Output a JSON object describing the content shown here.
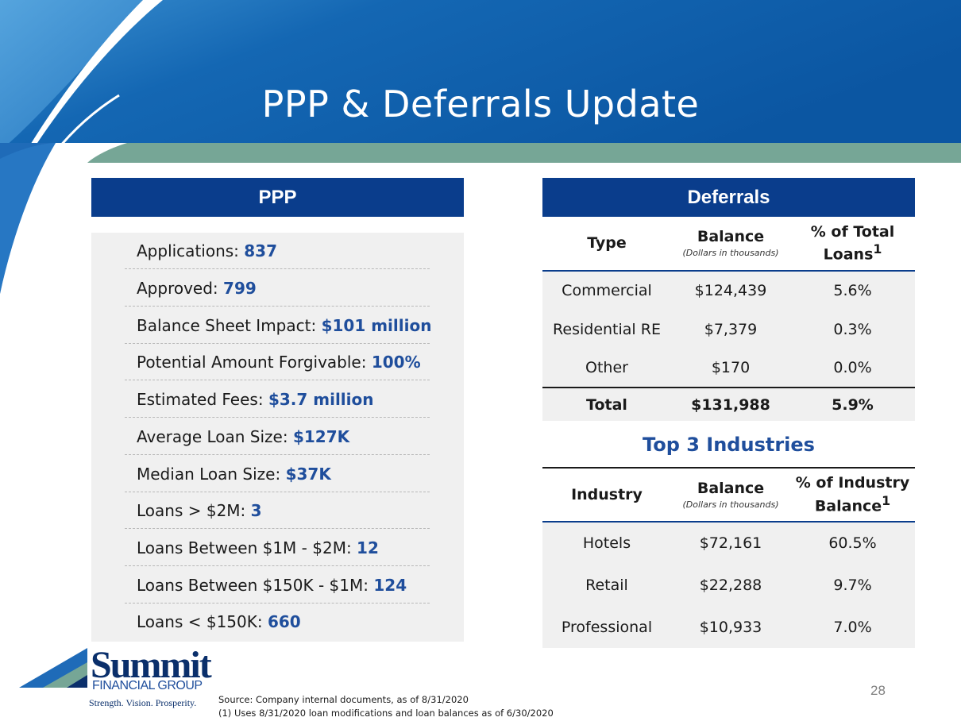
{
  "title": "PPP & Deferrals Update",
  "colors": {
    "brand_navy": "#0a3d8c",
    "accent_blue": "#1f4e9c",
    "teal_band": "#76a696",
    "panel_gray": "#f0f0f0"
  },
  "ppp": {
    "heading": "PPP",
    "rows": [
      {
        "label": "Applications:",
        "value": "837"
      },
      {
        "label": "Approved:",
        "value": "799"
      },
      {
        "label": "Balance Sheet Impact:",
        "value": "$101 million"
      },
      {
        "label": "Potential Amount Forgivable:",
        "value": "100%"
      },
      {
        "label": "Estimated Fees:",
        "value": "$3.7 million"
      },
      {
        "label": "Average Loan Size:",
        "value": "$127K"
      },
      {
        "label": "Median Loan Size:",
        "value": "$37K"
      },
      {
        "label": "Loans > $2M:",
        "value": "3"
      },
      {
        "label": "Loans Between $1M - $2M:",
        "value": "12"
      },
      {
        "label": "Loans Between $150K - $1M:",
        "value": "124"
      },
      {
        "label": "Loans < $150K:",
        "value": "660"
      }
    ]
  },
  "deferrals": {
    "heading": "Deferrals",
    "headers": {
      "type": "Type",
      "balance": "Balance",
      "balance_sub": "(Dollars in thousands)",
      "pct": "% of Total Loans",
      "pct_sup": "1"
    },
    "rows": [
      {
        "type": "Commercial",
        "balance": "$124,439",
        "pct": "5.6%"
      },
      {
        "type": "Residential RE",
        "balance": "$7,379",
        "pct": "0.3%"
      },
      {
        "type": "Other",
        "balance": "$170",
        "pct": "0.0%"
      }
    ],
    "total": {
      "type": "Total",
      "balance": "$131,988",
      "pct": "5.9%"
    }
  },
  "industries": {
    "heading": "Top 3 Industries",
    "headers": {
      "industry": "Industry",
      "balance": "Balance",
      "balance_sub": "(Dollars in thousands)",
      "pct": "% of Industry Balance",
      "pct_sup": "1"
    },
    "rows": [
      {
        "industry": "Hotels",
        "balance": "$72,161",
        "pct": "60.5%"
      },
      {
        "industry": "Retail",
        "balance": "$22,288",
        "pct": "9.7%"
      },
      {
        "industry": "Professional",
        "balance": "$10,933",
        "pct": "7.0%"
      }
    ]
  },
  "logo": {
    "name": "Summit",
    "sub": "FINANCIAL GROUP",
    "tagline": "Strength. Vision. Prosperity."
  },
  "footer": {
    "source": "Source: Company internal documents, as of 8/31/2020",
    "note": "(1) Uses 8/31/2020 loan modifications and loan balances as of 6/30/2020",
    "page": "28"
  }
}
